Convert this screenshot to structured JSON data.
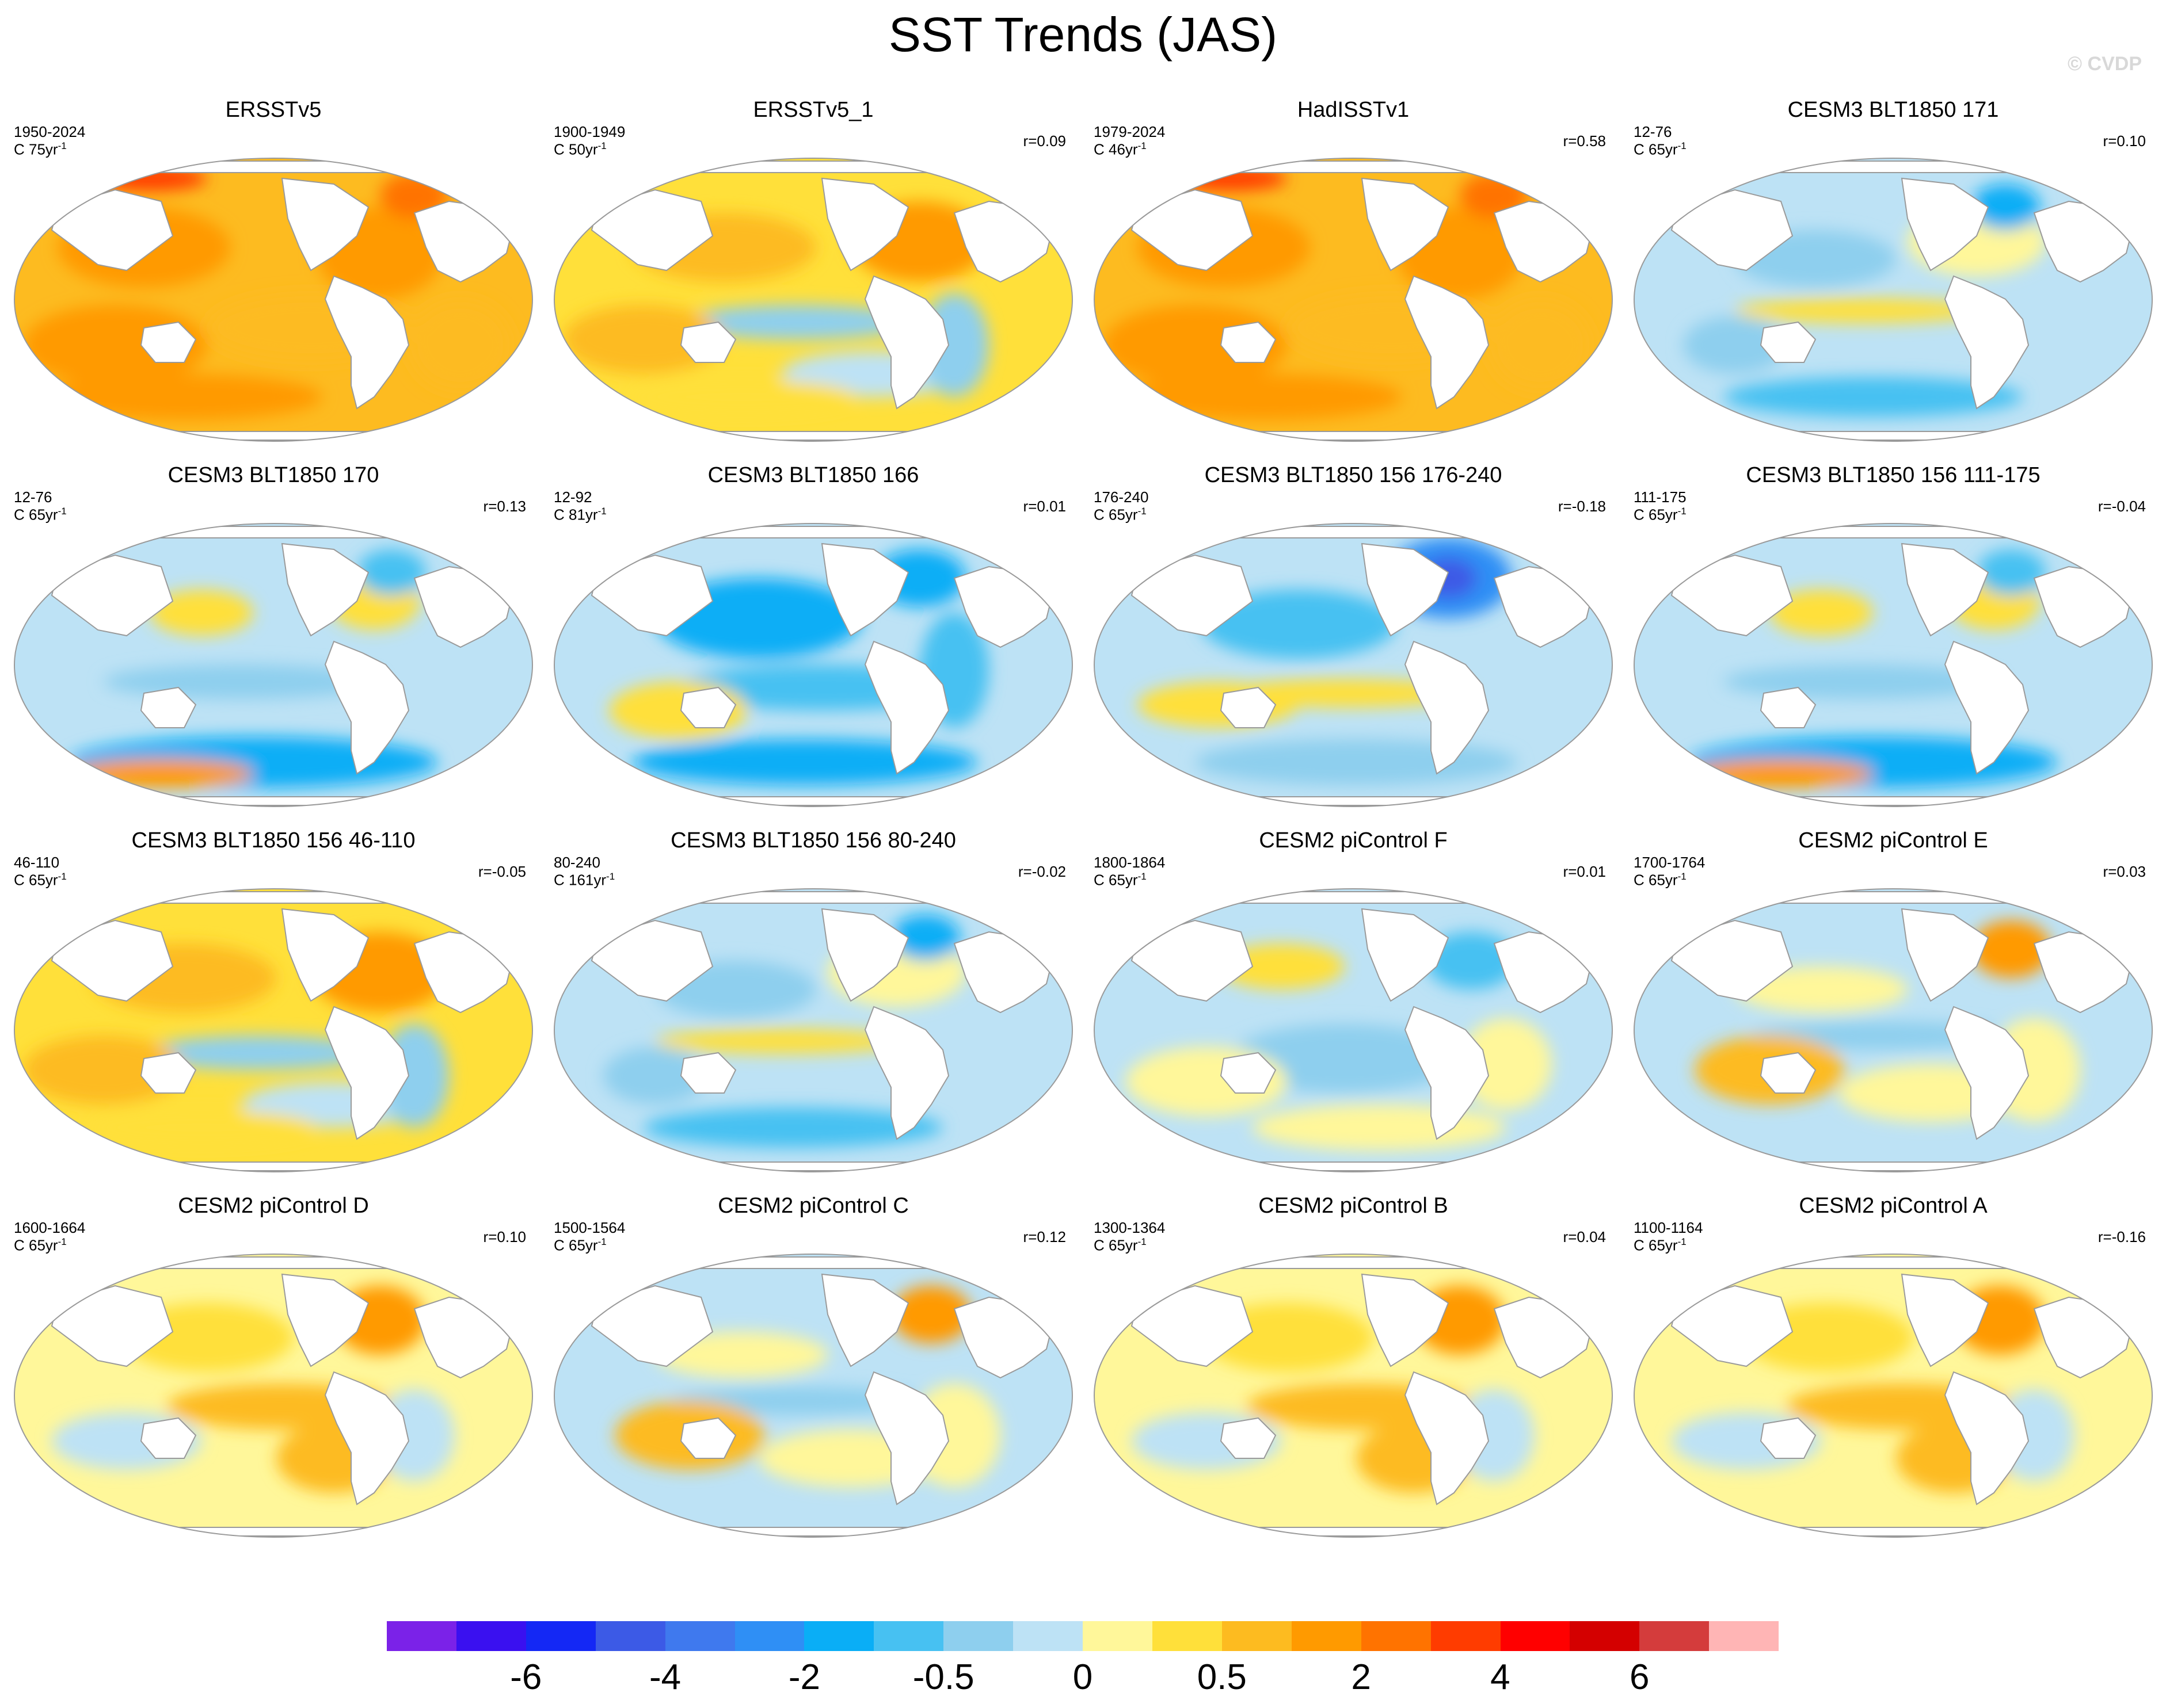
{
  "title": "SST Trends (JAS)",
  "watermark": "© CVDP",
  "colors": {
    "scale": [
      "#7b22e8",
      "#3a10f0",
      "#1428f5",
      "#3c5ae6",
      "#3f79ee",
      "#2f8ff5",
      "#0aaef6",
      "#47c1f2",
      "#8ecfee",
      "#bde2f5",
      "#fff79a",
      "#ffe03a",
      "#fdbb20",
      "#ff9a00",
      "#ff7300",
      "#ff3c00",
      "#ff0000",
      "#d40000",
      "#d43c3c",
      "#ffb5b5"
    ],
    "land": "#ffffff",
    "coast": "#9a9a9a"
  },
  "colorbar_labels": [
    "-6",
    "-4",
    "-2",
    "-0.5",
    "0",
    "0.5",
    "2",
    "4",
    "6"
  ],
  "panels": [
    {
      "title": "ERSSTv5",
      "years": "1950-2024",
      "scale": "C 75yr",
      "corr": "",
      "pattern": "warm_strong"
    },
    {
      "title": "ERSSTv5_1",
      "years": "1900-1949",
      "scale": "C 50yr",
      "corr": "r=0.09",
      "pattern": "warm_mixed"
    },
    {
      "title": "HadISSTv1",
      "years": "1979-2024",
      "scale": "C 46yr",
      "corr": "r=0.58",
      "pattern": "warm_strong"
    },
    {
      "title": "CESM3 BLT1850 171",
      "years": "12-76",
      "scale": "C 65yr",
      "corr": "r=0.10",
      "pattern": "cool_mixed"
    },
    {
      "title": "CESM3 BLT1850 170",
      "years": "12-76",
      "scale": "C 65yr",
      "corr": "r=0.13",
      "pattern": "cool_south"
    },
    {
      "title": "CESM3 BLT1850 166",
      "years": "12-92",
      "scale": "C 81yr",
      "corr": "r=0.01",
      "pattern": "cool_strong"
    },
    {
      "title": "CESM3 BLT1850 156 176-240",
      "years": "176-240",
      "scale": "C 65yr",
      "corr": "r=-0.18",
      "pattern": "cool_atlantic"
    },
    {
      "title": "CESM3 BLT1850 156 111-175",
      "years": "111-175",
      "scale": "C 65yr",
      "corr": "r=-0.04",
      "pattern": "cool_south"
    },
    {
      "title": "CESM3 BLT1850 156 46-110",
      "years": "46-110",
      "scale": "C 65yr",
      "corr": "r=-0.05",
      "pattern": "warm_mixed"
    },
    {
      "title": "CESM3 BLT1850 156 80-240",
      "years": "80-240",
      "scale": "C 161yr",
      "corr": "r=-0.02",
      "pattern": "cool_mixed"
    },
    {
      "title": "CESM2 piControl F",
      "years": "1800-1864",
      "scale": "C 65yr",
      "corr": "r=0.01",
      "pattern": "neutral_cool"
    },
    {
      "title": "CESM2 piControl E",
      "years": "1700-1764",
      "scale": "C 65yr",
      "corr": "r=0.03",
      "pattern": "neutral_mixed"
    },
    {
      "title": "CESM2 piControl D",
      "years": "1600-1664",
      "scale": "C 65yr",
      "corr": "r=0.10",
      "pattern": "neutral_warm"
    },
    {
      "title": "CESM2 piControl C",
      "years": "1500-1564",
      "scale": "C 65yr",
      "corr": "r=0.12",
      "pattern": "neutral_mixed"
    },
    {
      "title": "CESM2 piControl B",
      "years": "1300-1364",
      "scale": "C 65yr",
      "corr": "r=0.04",
      "pattern": "neutral_warm"
    },
    {
      "title": "CESM2 piControl A",
      "years": "1100-1164",
      "scale": "C 65yr",
      "corr": "r=-0.16",
      "pattern": "neutral_warm"
    }
  ]
}
